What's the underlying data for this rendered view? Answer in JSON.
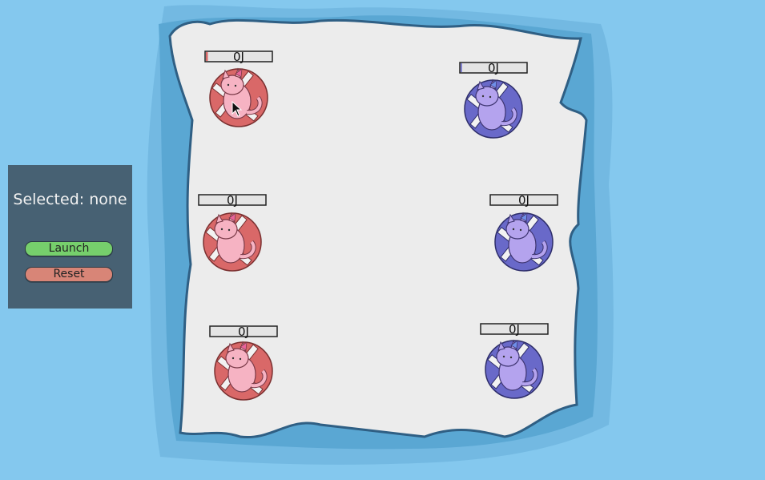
{
  "panel": {
    "selected_label": "Selected: none",
    "launch_label": "Launch",
    "reset_label": "Reset"
  },
  "colors": {
    "water": "#84c8ee",
    "ice": "#ececec",
    "panel": "#476173",
    "launch": "#76cf6c",
    "reset": "#d88577",
    "red_tube": "#d96868",
    "red_cat": "#f6b3c3",
    "blue_tube": "#6969c9",
    "blue_cat": "#b4a3ee"
  },
  "players": [
    {
      "team": "red",
      "label": "0J",
      "power": 0.03
    },
    {
      "team": "blue",
      "label": "0J",
      "power": 0.02
    },
    {
      "team": "red",
      "label": "0J",
      "power": 0.0
    },
    {
      "team": "blue",
      "label": "0J",
      "power": 0.0
    },
    {
      "team": "red",
      "label": "0J",
      "power": 0.0
    },
    {
      "team": "blue",
      "label": "0J",
      "power": 0.0
    }
  ]
}
